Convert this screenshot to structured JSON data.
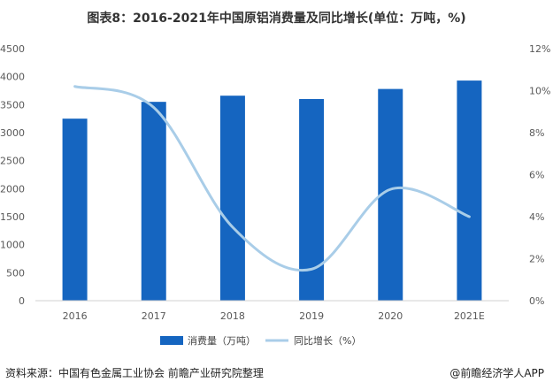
{
  "title": "图表8：2016-2021年中国原铝消费量及同比增长(单位：万吨，%)",
  "source": "资料来源：中国有色金属工业协会 前瞻产业研究院整理",
  "brand": "@前瞻经济学人APP",
  "chart_data": {
    "type": "bar",
    "categories": [
      "2016",
      "2017",
      "2018",
      "2019",
      "2020",
      "2021E"
    ],
    "series": [
      {
        "name": "消费量（万吨）",
        "type": "bar",
        "axis": "left",
        "color": "#1565c0",
        "values": [
          3250,
          3550,
          3660,
          3600,
          3780,
          3930
        ]
      },
      {
        "name": "同比增长（%）",
        "type": "line",
        "axis": "right",
        "color": "#a9cde8",
        "smooth": true,
        "values": [
          10.2,
          9.2,
          3.5,
          1.5,
          5.3,
          4.0
        ]
      }
    ],
    "y_left": {
      "min": 0,
      "max": 4500,
      "step": 500,
      "ticks": [
        "0",
        "500",
        "1000",
        "1500",
        "2000",
        "2500",
        "3000",
        "3500",
        "4000",
        "4500"
      ]
    },
    "y_right": {
      "min": 0,
      "max": 12,
      "step": 2,
      "ticks": [
        "0%",
        "2%",
        "4%",
        "6%",
        "8%",
        "10%",
        "12%"
      ]
    },
    "grid": false,
    "legend_position": "bottom"
  }
}
